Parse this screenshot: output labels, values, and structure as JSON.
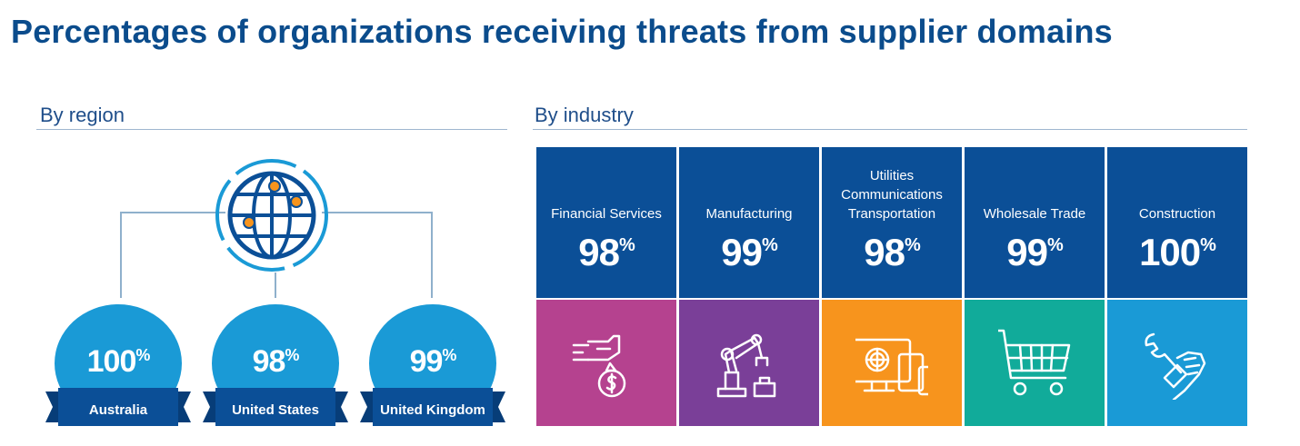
{
  "title": "Percentages of organizations receiving threats from supplier domains",
  "region_label": "By region",
  "industry_label": "By industry",
  "chart_data": [
    {
      "type": "table",
      "title": "By region",
      "categories": [
        "Australia",
        "United States",
        "United Kingdom"
      ],
      "values": [
        100,
        98,
        99
      ],
      "unit": "%",
      "color": "#1a9ad6",
      "ribbon_color": "#0b4f97",
      "icon": "globe-icon"
    },
    {
      "type": "table",
      "title": "By industry",
      "categories": [
        "Financial Services",
        "Manufacturing",
        "Utilities\nCommunications\nTransportation",
        "Wholesale Trade",
        "Construction"
      ],
      "values": [
        98,
        99,
        98,
        99,
        100
      ],
      "unit": "%",
      "header_color": "#0b4f97",
      "tile_colors": [
        "#b5428f",
        "#7a3f98",
        "#f7941d",
        "#11ab9a",
        "#1a9ad6"
      ],
      "icons": [
        "hand-money-bag-icon",
        "robot-arm-icon",
        "devices-icon",
        "shopping-cart-icon",
        "hand-wrench-icon"
      ]
    }
  ]
}
